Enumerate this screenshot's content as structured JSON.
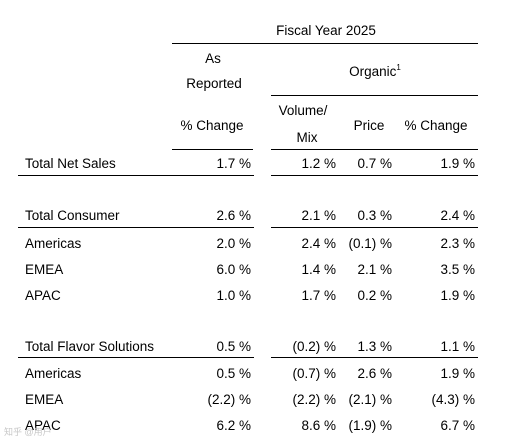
{
  "header": {
    "fiscal_year": "Fiscal Year 2025",
    "as_reported_line1": "As",
    "as_reported_line2": "Reported",
    "organic": "Organic",
    "organic_footnote": "1",
    "col_pct_change_reported": "% Change",
    "col_volume_line1": "Volume/",
    "col_volume_line2": "Mix",
    "col_price": "Price",
    "col_pct_change_organic": "% Change"
  },
  "rows": [
    {
      "label": "Total Net Sales",
      "reported": "1.7 %",
      "volume": "1.2 %",
      "price": "0.7 %",
      "organic": "1.9 %"
    },
    {
      "label": "Total Consumer",
      "reported": "2.6 %",
      "volume": "2.1 %",
      "price": "0.3 %",
      "organic": "2.4 %"
    },
    {
      "label": "Americas",
      "reported": "2.0 %",
      "volume": "2.4 %",
      "price": "(0.1) %",
      "organic": "2.3 %"
    },
    {
      "label": "EMEA",
      "reported": "6.0 %",
      "volume": "1.4 %",
      "price": "2.1 %",
      "organic": "3.5 %"
    },
    {
      "label": "APAC",
      "reported": "1.0 %",
      "volume": "1.7 %",
      "price": "0.2 %",
      "organic": "1.9 %"
    },
    {
      "label": "Total Flavor Solutions",
      "reported": "0.5 %",
      "volume": "(0.2) %",
      "price": "1.3 %",
      "organic": "1.1 %"
    },
    {
      "label": "Americas",
      "reported": "0.5 %",
      "volume": "(0.7) %",
      "price": "2.6 %",
      "organic": "1.9 %"
    },
    {
      "label": "EMEA",
      "reported": "(2.2) %",
      "volume": "(2.2) %",
      "price": "(2.1) %",
      "organic": "(4.3) %"
    },
    {
      "label": "APAC",
      "reported": "6.2 %",
      "volume": "8.6 %",
      "price": "(1.9) %",
      "organic": "6.7 %"
    }
  ],
  "watermark": "知乎 @用户"
}
